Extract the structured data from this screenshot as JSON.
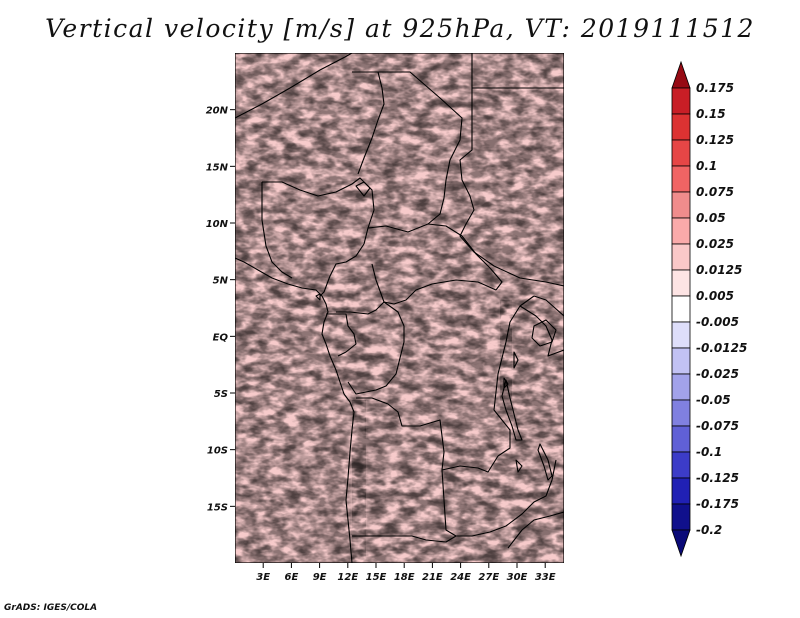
{
  "title": "Vertical velocity [m/s] at 925hPa, VT: 2019111512",
  "credit": "GrADS: IGES/COLA",
  "map": {
    "lon_range": [
      0,
      35
    ],
    "lat_range": [
      -20,
      25
    ],
    "x_ticks": [
      "3E",
      "6E",
      "9E",
      "12E",
      "15E",
      "18E",
      "21E",
      "24E",
      "27E",
      "30E",
      "33E"
    ],
    "y_ticks": [
      "20N",
      "15N",
      "10N",
      "5N",
      "EQ",
      "5S",
      "10S",
      "15S"
    ],
    "positive_color": "#e33a3a",
    "negative_color": "#5a5ae6",
    "border_color": "#000000"
  },
  "colorbar": {
    "labels": [
      "0.175",
      "0.15",
      "0.125",
      "0.1",
      "0.075",
      "0.05",
      "0.025",
      "0.0125",
      "0.005",
      "-0.005",
      "-0.0125",
      "-0.025",
      "-0.05",
      "-0.075",
      "-0.1",
      "-0.125",
      "-0.175",
      "-0.2"
    ],
    "colors": [
      "#a0141e",
      "#c81e26",
      "#dc3232",
      "#e64646",
      "#f06464",
      "#f08c8c",
      "#faaaaa",
      "#fac8c8",
      "#fde4e4",
      "#ffffff",
      "#dedefa",
      "#c2c2f4",
      "#a2a2ea",
      "#8080e0",
      "#6060d6",
      "#3c3cc8",
      "#2020b4",
      "#10108c"
    ],
    "top_arrow_color": "#960a14",
    "bottom_arrow_color": "#0a0a78"
  }
}
